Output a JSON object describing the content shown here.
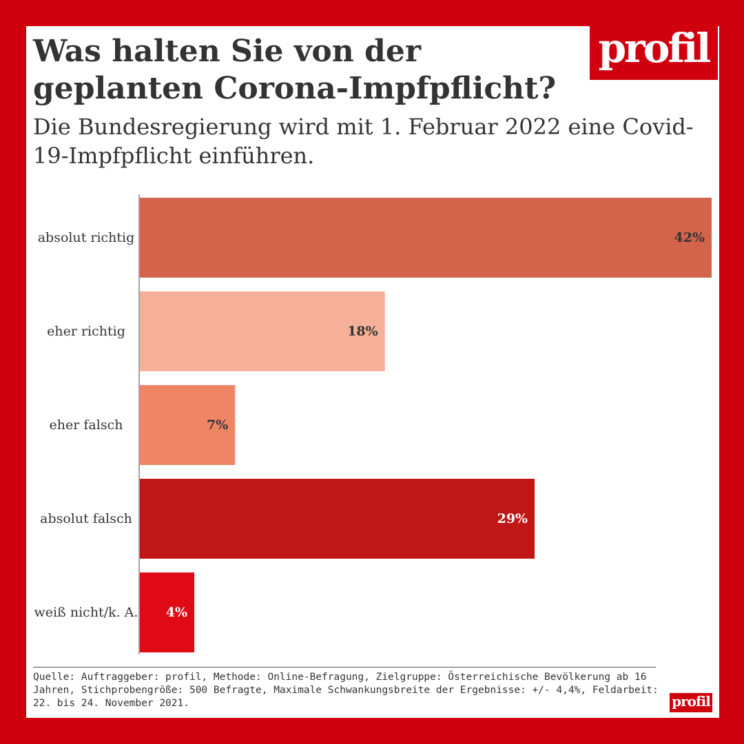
{
  "brand": {
    "logo_text": "profil",
    "color": "#d0000e"
  },
  "header": {
    "title": "Was halten Sie von der geplanten Corona-Impfpflicht?",
    "subtitle": "Die Bundesregierung wird mit 1. Februar 2022 eine Covid-19-Impfpflicht einführen."
  },
  "chart_data": {
    "type": "bar",
    "orientation": "horizontal",
    "title": "Was halten Sie von der geplanten Corona-Impfpflicht?",
    "categories": [
      "absolut richtig",
      "eher richtig",
      "eher falsch",
      "absolut falsch",
      "weiß nicht/k. A."
    ],
    "values": [
      42,
      18,
      7,
      29,
      4
    ],
    "value_labels": [
      "42%",
      "18%",
      "7%",
      "29%",
      "4%"
    ],
    "unit": "%",
    "xlim": [
      0,
      42
    ],
    "colors": [
      "#d3634a",
      "#f5b097",
      "#f08566",
      "#c01616",
      "#e00a16"
    ],
    "label_colors": [
      "#333333",
      "#333333",
      "#333333",
      "#ffffff",
      "#ffffff"
    ],
    "grid": false
  },
  "footer": {
    "source": "Quelle: Auftraggeber: profil, Methode: Online-Befragung, Zielgruppe: Österreichische Bevölkerung ab 16 Jahren, Stichprobengröße: 500 Befragte, Maximale Schwankungsbreite der Ergebnisse: +/- 4,4%, Feldarbeit: 22. bis 24. November 2021."
  }
}
